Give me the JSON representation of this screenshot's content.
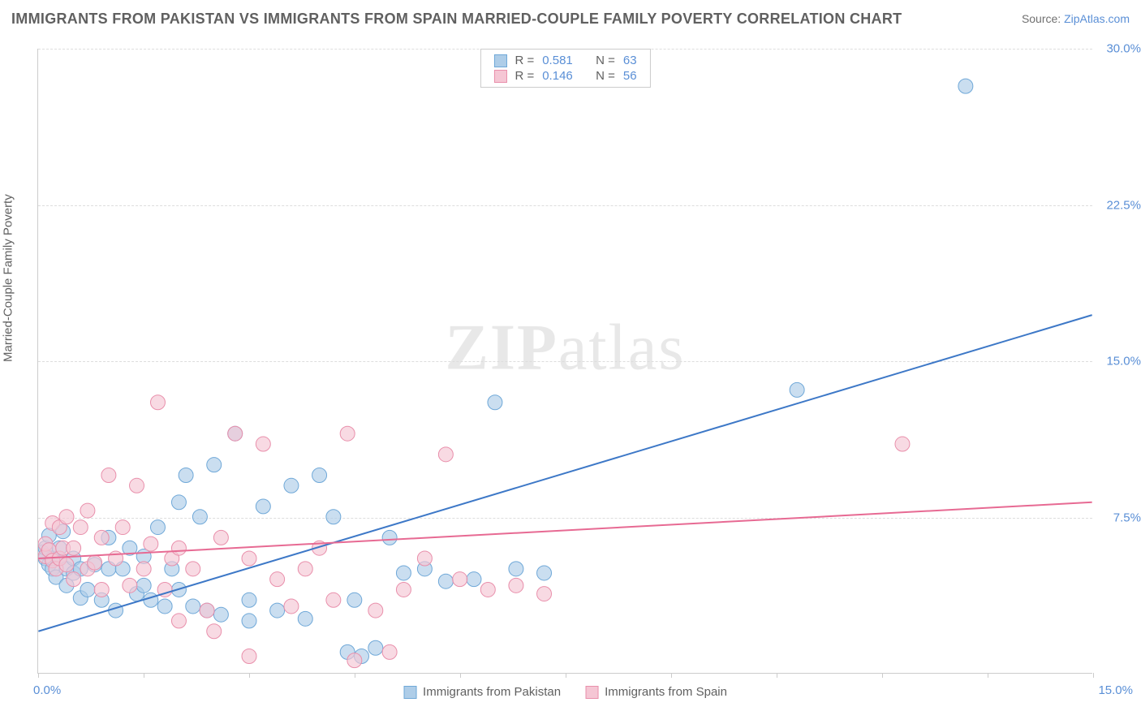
{
  "title": "IMMIGRANTS FROM PAKISTAN VS IMMIGRANTS FROM SPAIN MARRIED-COUPLE FAMILY POVERTY CORRELATION CHART",
  "source_label": "Source:",
  "source_name": "ZipAtlas.com",
  "watermark_a": "ZIP",
  "watermark_b": "atlas",
  "y_axis_label": "Married-Couple Family Poverty",
  "chart": {
    "type": "scatter",
    "xlim": [
      0,
      15
    ],
    "ylim": [
      0,
      30
    ],
    "yticks": [
      7.5,
      15.0,
      22.5,
      30.0
    ],
    "ytick_labels": [
      "7.5%",
      "15.0%",
      "22.5%",
      "30.0%"
    ],
    "xticks": [
      0,
      1.5,
      3.0,
      4.5,
      6.0,
      7.5,
      9.0,
      10.5,
      12.0,
      13.5,
      15.0
    ],
    "xtick_labels_shown": {
      "0": "0.0%",
      "15": "15.0%"
    },
    "background_color": "#ffffff",
    "grid_color": "#dddddd",
    "axis_color": "#cccccc",
    "label_color": "#5a8fd6",
    "series": [
      {
        "id": "pakistan",
        "label": "Immigrants from Pakistan",
        "R": "0.581",
        "N": "63",
        "fill": "#aecde8",
        "stroke": "#6fa8d8",
        "line_color": "#3d78c7",
        "trend": {
          "x1": 0,
          "y1": 2.0,
          "x2": 15,
          "y2": 17.2
        },
        "points": [
          [
            0.05,
            5.8
          ],
          [
            0.1,
            5.5
          ],
          [
            0.1,
            6.0
          ],
          [
            0.15,
            5.2
          ],
          [
            0.15,
            6.6
          ],
          [
            0.2,
            5.0
          ],
          [
            0.2,
            5.5
          ],
          [
            0.25,
            4.6
          ],
          [
            0.3,
            5.5
          ],
          [
            0.3,
            6.0
          ],
          [
            0.35,
            6.8
          ],
          [
            0.4,
            5.0
          ],
          [
            0.4,
            4.2
          ],
          [
            0.5,
            5.5
          ],
          [
            0.5,
            4.8
          ],
          [
            0.6,
            3.6
          ],
          [
            0.6,
            5.0
          ],
          [
            0.7,
            4.0
          ],
          [
            0.8,
            5.2
          ],
          [
            0.9,
            3.5
          ],
          [
            1.0,
            5.0
          ],
          [
            1.0,
            6.5
          ],
          [
            1.1,
            3.0
          ],
          [
            1.2,
            5.0
          ],
          [
            1.3,
            6.0
          ],
          [
            1.4,
            3.8
          ],
          [
            1.5,
            5.6
          ],
          [
            1.5,
            4.2
          ],
          [
            1.6,
            3.5
          ],
          [
            1.7,
            7.0
          ],
          [
            1.8,
            3.2
          ],
          [
            1.9,
            5.0
          ],
          [
            2.0,
            8.2
          ],
          [
            2.0,
            4.0
          ],
          [
            2.1,
            9.5
          ],
          [
            2.2,
            3.2
          ],
          [
            2.3,
            7.5
          ],
          [
            2.4,
            3.0
          ],
          [
            2.5,
            10.0
          ],
          [
            2.6,
            2.8
          ],
          [
            2.8,
            11.5
          ],
          [
            3.0,
            3.5
          ],
          [
            3.0,
            2.5
          ],
          [
            3.2,
            8.0
          ],
          [
            3.4,
            3.0
          ],
          [
            3.6,
            9.0
          ],
          [
            3.8,
            2.6
          ],
          [
            4.0,
            9.5
          ],
          [
            4.2,
            7.5
          ],
          [
            4.4,
            1.0
          ],
          [
            4.5,
            3.5
          ],
          [
            4.8,
            1.2
          ],
          [
            5.0,
            6.5
          ],
          [
            5.2,
            4.8
          ],
          [
            5.5,
            5.0
          ],
          [
            5.8,
            4.4
          ],
          [
            6.2,
            4.5
          ],
          [
            6.5,
            13.0
          ],
          [
            6.8,
            5.0
          ],
          [
            7.2,
            4.8
          ],
          [
            10.8,
            13.6
          ],
          [
            13.2,
            28.2
          ],
          [
            4.6,
            0.8
          ]
        ]
      },
      {
        "id": "spain",
        "label": "Immigrants from Spain",
        "R": "0.146",
        "N": "56",
        "fill": "#f5c6d4",
        "stroke": "#e98fab",
        "line_color": "#e76a93",
        "trend": {
          "x1": 0,
          "y1": 5.5,
          "x2": 15,
          "y2": 8.2
        },
        "points": [
          [
            0.1,
            5.6
          ],
          [
            0.1,
            6.2
          ],
          [
            0.15,
            5.9
          ],
          [
            0.2,
            5.4
          ],
          [
            0.2,
            7.2
          ],
          [
            0.25,
            5.0
          ],
          [
            0.3,
            7.0
          ],
          [
            0.3,
            5.5
          ],
          [
            0.35,
            6.0
          ],
          [
            0.4,
            7.5
          ],
          [
            0.4,
            5.2
          ],
          [
            0.5,
            6.0
          ],
          [
            0.5,
            4.5
          ],
          [
            0.6,
            7.0
          ],
          [
            0.7,
            5.0
          ],
          [
            0.7,
            7.8
          ],
          [
            0.8,
            5.3
          ],
          [
            0.9,
            6.5
          ],
          [
            0.9,
            4.0
          ],
          [
            1.0,
            9.5
          ],
          [
            1.1,
            5.5
          ],
          [
            1.2,
            7.0
          ],
          [
            1.3,
            4.2
          ],
          [
            1.4,
            9.0
          ],
          [
            1.5,
            5.0
          ],
          [
            1.6,
            6.2
          ],
          [
            1.7,
            13.0
          ],
          [
            1.8,
            4.0
          ],
          [
            1.9,
            5.5
          ],
          [
            2.0,
            6.0
          ],
          [
            2.0,
            2.5
          ],
          [
            2.2,
            5.0
          ],
          [
            2.4,
            3.0
          ],
          [
            2.5,
            2.0
          ],
          [
            2.6,
            6.5
          ],
          [
            2.8,
            11.5
          ],
          [
            3.0,
            5.5
          ],
          [
            3.0,
            0.8
          ],
          [
            3.2,
            11.0
          ],
          [
            3.4,
            4.5
          ],
          [
            3.6,
            3.2
          ],
          [
            3.8,
            5.0
          ],
          [
            4.0,
            6.0
          ],
          [
            4.2,
            3.5
          ],
          [
            4.4,
            11.5
          ],
          [
            4.8,
            3.0
          ],
          [
            5.0,
            1.0
          ],
          [
            5.2,
            4.0
          ],
          [
            5.5,
            5.5
          ],
          [
            5.8,
            10.5
          ],
          [
            6.0,
            4.5
          ],
          [
            6.4,
            4.0
          ],
          [
            6.8,
            4.2
          ],
          [
            7.2,
            3.8
          ],
          [
            12.3,
            11.0
          ],
          [
            4.5,
            0.6
          ]
        ]
      }
    ],
    "marker_radius": 9,
    "marker_opacity": 0.65,
    "line_width": 2,
    "legend_top": {
      "R_label": "R =",
      "N_label": "N ="
    }
  }
}
